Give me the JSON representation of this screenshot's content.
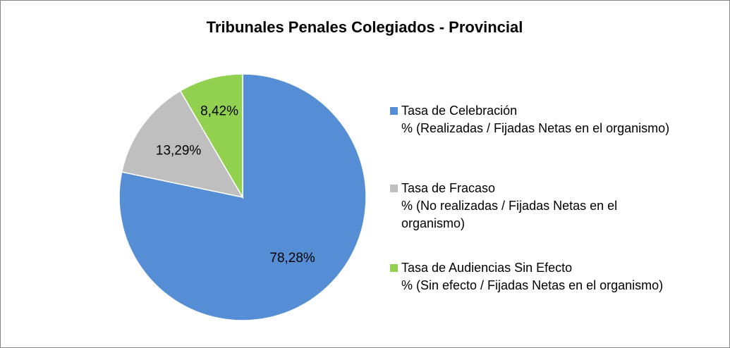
{
  "chart_data": {
    "type": "pie",
    "title": "Tribunales Penales Colegiados - Provincial",
    "series": [
      {
        "name": "Tasa de Celebración\n% (Realizadas / Fijadas Netas en el organismo)",
        "color": "#558ed5",
        "values": [
          78.28
        ],
        "value_labels": [
          "78,28%"
        ]
      },
      {
        "name": "Tasa de Fracaso\n % (No realizadas / Fijadas Netas en el\norganismo)",
        "color": "#bfbfbf",
        "values": [
          13.29
        ],
        "value_labels": [
          "13,29%"
        ]
      },
      {
        "name": "Tasa de Audiencias Sin Efecto\n% (Sin efecto / Fijadas Netas en el organismo)",
        "color": "#92d050",
        "values": [
          8.42
        ],
        "value_labels": [
          "8,42%"
        ]
      }
    ],
    "legend": "right"
  }
}
